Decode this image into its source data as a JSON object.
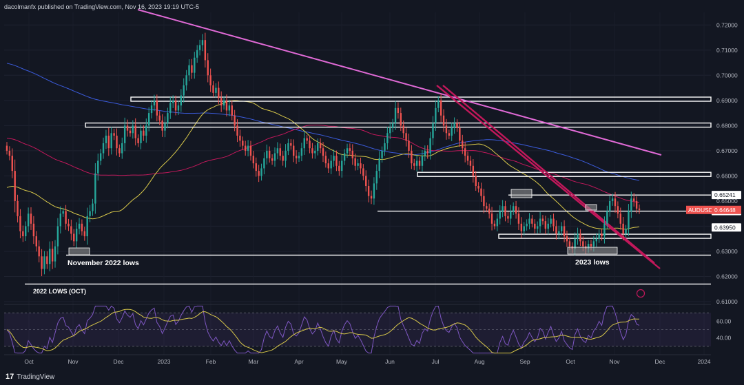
{
  "header": {
    "text": "dacolmanfx published on TradingView.com, Nov 16, 2023 19:19 UTC-5"
  },
  "footer": {
    "brand": "TradingView",
    "logo": "17"
  },
  "colors": {
    "bg": "#131722",
    "bull": "#26a69a",
    "bear": "#ef5350",
    "sma50": "#d8c84a",
    "sma100": "#c2185b",
    "sma200": "#3b5bdb",
    "trend": "#e06ad6",
    "rsi": "#7e57c2"
  },
  "chart_data": {
    "type": "candlestick",
    "symbol": "AUDUSD",
    "current_price": "0.64648",
    "ylim": [
      0.61,
      0.725
    ],
    "y_ticks": [
      "0.72000",
      "0.71000",
      "0.70000",
      "0.69000",
      "0.68000",
      "0.67000",
      "0.66000",
      "0.65000",
      "0.64000",
      "0.63000",
      "0.62000",
      "0.61000"
    ],
    "x_ticks": [
      "Oct",
      "Nov",
      "Dec",
      "2023",
      "Feb",
      "Mar",
      "Apr",
      "May",
      "Jun",
      "Jul",
      "Aug",
      "Sep",
      "Oct",
      "Nov",
      "Dec",
      "2024"
    ],
    "price_tags": [
      {
        "label": "0.65241",
        "value": 0.6524,
        "style": "white"
      },
      {
        "label": "0.64600",
        "value": 0.646,
        "style": "white"
      },
      {
        "label": "0.63950",
        "value": 0.6395,
        "style": "white"
      }
    ],
    "levels": [
      0.6905,
      0.6802,
      0.6606,
      0.6524,
      0.646,
      0.636,
      0.6285,
      0.617
    ],
    "annotations": [
      "November 2022 lows",
      "2022 LOWS (OCT)",
      "2023 lows"
    ],
    "closes": [
      0.67,
      0.668,
      0.662,
      0.65,
      0.644,
      0.638,
      0.636,
      0.64,
      0.645,
      0.641,
      0.636,
      0.632,
      0.628,
      0.623,
      0.628,
      0.625,
      0.631,
      0.626,
      0.632,
      0.64,
      0.645,
      0.646,
      0.641,
      0.64,
      0.637,
      0.634,
      0.639,
      0.641,
      0.638,
      0.636,
      0.644,
      0.646,
      0.649,
      0.661,
      0.666,
      0.669,
      0.673,
      0.676,
      0.671,
      0.677,
      0.676,
      0.671,
      0.669,
      0.673,
      0.68,
      0.678,
      0.677,
      0.68,
      0.675,
      0.673,
      0.678,
      0.676,
      0.68,
      0.685,
      0.688,
      0.69,
      0.684,
      0.682,
      0.678,
      0.681,
      0.685,
      0.689,
      0.69,
      0.686,
      0.688,
      0.692,
      0.696,
      0.7,
      0.704,
      0.701,
      0.707,
      0.71,
      0.712,
      0.714,
      0.706,
      0.7,
      0.696,
      0.693,
      0.695,
      0.691,
      0.688,
      0.69,
      0.686,
      0.688,
      0.684,
      0.68,
      0.676,
      0.674,
      0.672,
      0.67,
      0.672,
      0.668,
      0.665,
      0.662,
      0.66,
      0.663,
      0.667,
      0.67,
      0.667,
      0.666,
      0.669,
      0.671,
      0.668,
      0.666,
      0.67,
      0.673,
      0.672,
      0.668,
      0.667,
      0.668,
      0.671,
      0.675,
      0.674,
      0.671,
      0.669,
      0.67,
      0.673,
      0.671,
      0.668,
      0.665,
      0.663,
      0.666,
      0.668,
      0.664,
      0.662,
      0.666,
      0.669,
      0.671,
      0.67,
      0.667,
      0.664,
      0.665,
      0.663,
      0.66,
      0.656,
      0.652,
      0.651,
      0.657,
      0.662,
      0.667,
      0.67,
      0.673,
      0.677,
      0.679,
      0.681,
      0.687,
      0.685,
      0.68,
      0.677,
      0.674,
      0.67,
      0.665,
      0.664,
      0.666,
      0.664,
      0.668,
      0.67,
      0.669,
      0.675,
      0.681,
      0.687,
      0.69,
      0.684,
      0.68,
      0.677,
      0.676,
      0.679,
      0.681,
      0.679,
      0.674,
      0.671,
      0.668,
      0.666,
      0.664,
      0.66,
      0.656,
      0.655,
      0.652,
      0.648,
      0.647,
      0.645,
      0.641,
      0.64,
      0.643,
      0.646,
      0.648,
      0.644,
      0.643,
      0.646,
      0.648,
      0.645,
      0.641,
      0.638,
      0.64,
      0.641,
      0.643,
      0.641,
      0.639,
      0.64,
      0.643,
      0.642,
      0.639,
      0.641,
      0.643,
      0.64,
      0.637,
      0.638,
      0.64,
      0.636,
      0.634,
      0.632,
      0.631,
      0.635,
      0.637,
      0.634,
      0.632,
      0.631,
      0.633,
      0.632,
      0.634,
      0.635,
      0.637,
      0.636,
      0.641,
      0.646,
      0.65,
      0.651,
      0.648,
      0.645,
      0.641,
      0.637,
      0.639,
      0.646,
      0.651,
      0.65,
      0.647,
      0.6465
    ],
    "rsi": {
      "levels": [
        "60.00",
        "40.00"
      ],
      "ylim": [
        20,
        80
      ]
    }
  }
}
